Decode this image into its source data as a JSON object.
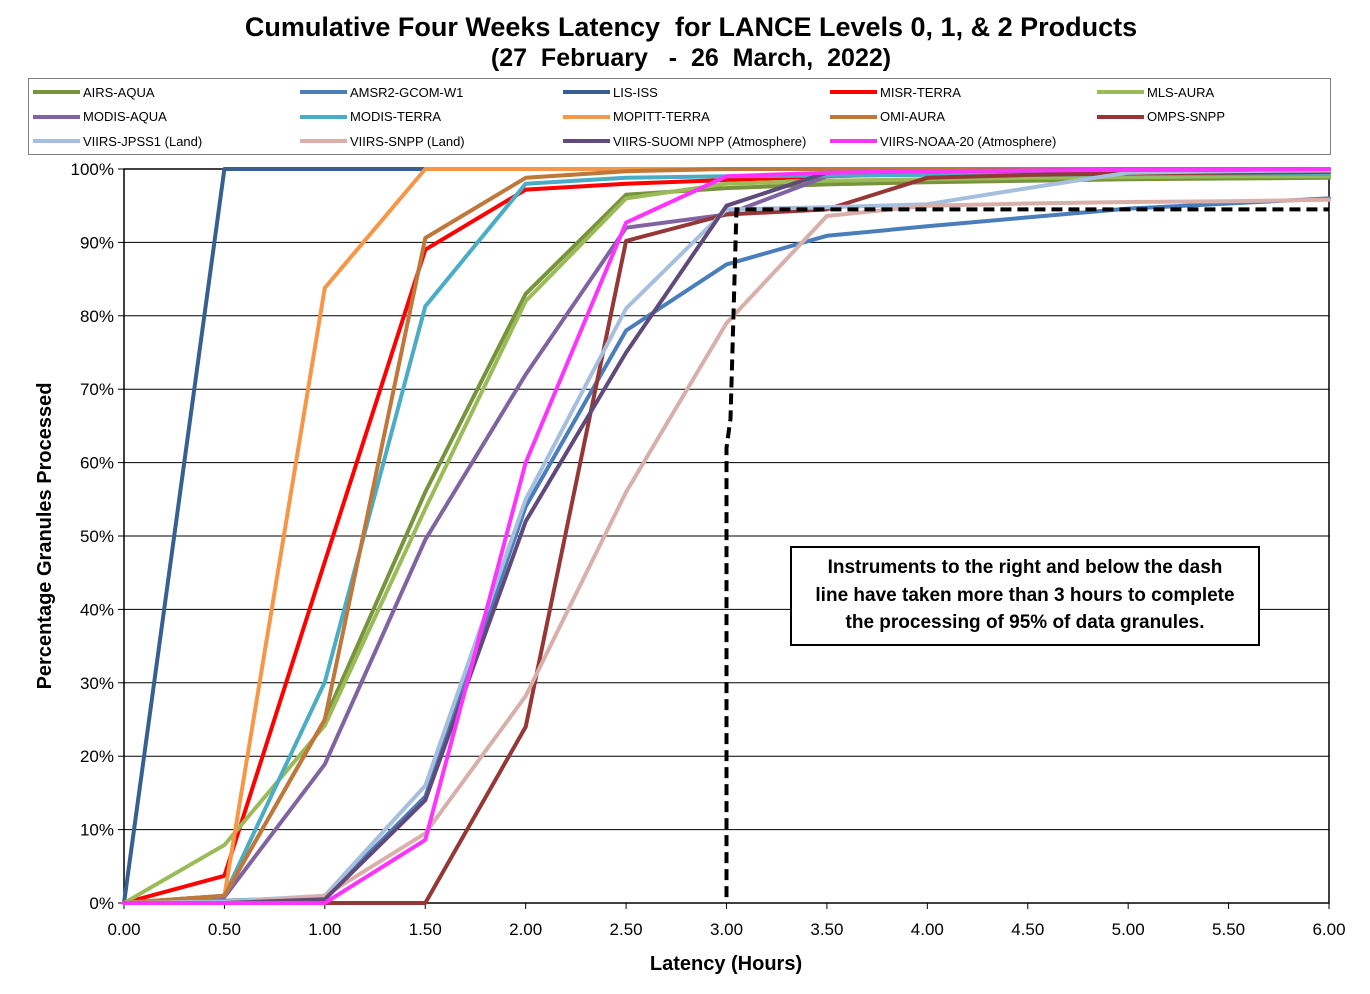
{
  "chart_data": {
    "type": "line",
    "title": "Cumulative Four Weeks Latency  for LANCE Levels 0, 1, & 2 Products",
    "subtitle": "(27  February   -  26  March,  2022)",
    "xlabel": "Latency (Hours)",
    "ylabel": "Percentage Granules Processed",
    "xlim": [
      0,
      6
    ],
    "ylim": [
      0,
      100
    ],
    "x_ticks": [
      "0.00",
      "0.50",
      "1.00",
      "1.50",
      "2.00",
      "2.50",
      "3.00",
      "3.50",
      "4.00",
      "4.50",
      "5.00",
      "5.50",
      "6.00"
    ],
    "y_ticks": [
      "0%",
      "10%",
      "20%",
      "30%",
      "40%",
      "50%",
      "60%",
      "70%",
      "80%",
      "90%",
      "100%"
    ],
    "grid": "horizontal",
    "legend_position": "top",
    "x": [
      0,
      0.5,
      1,
      1.5,
      2,
      2.5,
      3,
      3.5,
      4,
      4.5,
      5,
      5.5,
      6
    ],
    "series": [
      {
        "name": "AIRS-AQUA",
        "color": "#77933C",
        "values": [
          0,
          1,
          25,
          56,
          83,
          96.5,
          97.4,
          97.9,
          98.2,
          98.4,
          98.6,
          98.7,
          98.8
        ]
      },
      {
        "name": "AMSR2-GCOM-W1",
        "color": "#4A7EBB",
        "values": [
          0,
          0.3,
          0.8,
          14.5,
          54,
          78,
          87,
          90.9,
          92.2,
          93.4,
          94.6,
          95.3,
          96
        ]
      },
      {
        "name": "LIS-ISS",
        "color": "#376092",
        "values": [
          0,
          100,
          100,
          100,
          100,
          100,
          100,
          100,
          100,
          100,
          100,
          100,
          100
        ]
      },
      {
        "name": "MISR-TERRA",
        "color": "#FF0000",
        "values": [
          0,
          3.7,
          46.5,
          89,
          97.2,
          98,
          98.5,
          99,
          99.4,
          99.6,
          99.8,
          99.9,
          100
        ]
      },
      {
        "name": "MLS-AURA",
        "color": "#9BBB59",
        "values": [
          0,
          7.9,
          24.2,
          53.7,
          82,
          96,
          98,
          98.4,
          98.6,
          98.8,
          98.9,
          99,
          99
        ]
      },
      {
        "name": "MODIS-AQUA",
        "color": "#8064A2",
        "values": [
          0,
          0.8,
          18.9,
          49.5,
          72,
          92,
          93.8,
          99,
          99.3,
          99.5,
          99.6,
          99.7,
          99.8
        ]
      },
      {
        "name": "MODIS-TERRA",
        "color": "#4BACC6",
        "values": [
          0,
          1,
          30.1,
          81.3,
          98,
          98.8,
          99,
          99.1,
          99.2,
          99.2,
          99.3,
          99.3,
          99.3
        ]
      },
      {
        "name": "MOPITT-TERRA",
        "color": "#F79646",
        "values": [
          0,
          1,
          83.8,
          100,
          100,
          100,
          100,
          100,
          100,
          100,
          100,
          100,
          100
        ]
      },
      {
        "name": "OMI-AURA",
        "color": "#C0773A",
        "values": [
          0,
          1,
          25,
          90.6,
          98.8,
          99.7,
          100,
          100,
          100,
          100,
          100,
          100,
          100
        ]
      },
      {
        "name": "OMPS-SNPP",
        "color": "#953735",
        "values": [
          0,
          0,
          0,
          0,
          24,
          90.2,
          93.8,
          94.5,
          98.8,
          99.2,
          99.4,
          99.5,
          99.6
        ]
      },
      {
        "name": "VIIRS-JPSS1 (Land)",
        "color": "#A7BFDE",
        "values": [
          0,
          0.2,
          1,
          16,
          55,
          81,
          94.5,
          94.8,
          95.2,
          97.4,
          99.5,
          99.7,
          99.8
        ]
      },
      {
        "name": "VIIRS-SNPP (Land)",
        "color": "#D9AFAA",
        "values": [
          0,
          0,
          1,
          9.5,
          28.2,
          56,
          79,
          93.6,
          95,
          95.3,
          95.5,
          95.6,
          95.8
        ]
      },
      {
        "name": "VIIRS-SUOMI NPP (Atmosphere)",
        "color": "#604A7B",
        "values": [
          0,
          0,
          0.5,
          14,
          52,
          75,
          95,
          99.5,
          99.7,
          99.8,
          99.9,
          99.9,
          100
        ]
      },
      {
        "name": "VIIRS-NOAA-20 (Atmosphere)",
        "color": "#FF33FF",
        "values": [
          0,
          0,
          0,
          8.6,
          60,
          92.7,
          99,
          99.5,
          99.7,
          99.8,
          99.9,
          99.9,
          100
        ]
      }
    ],
    "reference_line": {
      "style": "dashed",
      "color": "#000000",
      "points": [
        [
          3.0,
          0.8
        ],
        [
          3.0,
          62
        ],
        [
          3.02,
          66
        ],
        [
          3.05,
          94.5
        ],
        [
          6.0,
          94.5
        ]
      ]
    },
    "annotation": {
      "lines": [
        "Instruments to the right and below the dash",
        "line have taken more than 3 hours to complete",
        "the processing of 95% of data granules."
      ]
    }
  }
}
